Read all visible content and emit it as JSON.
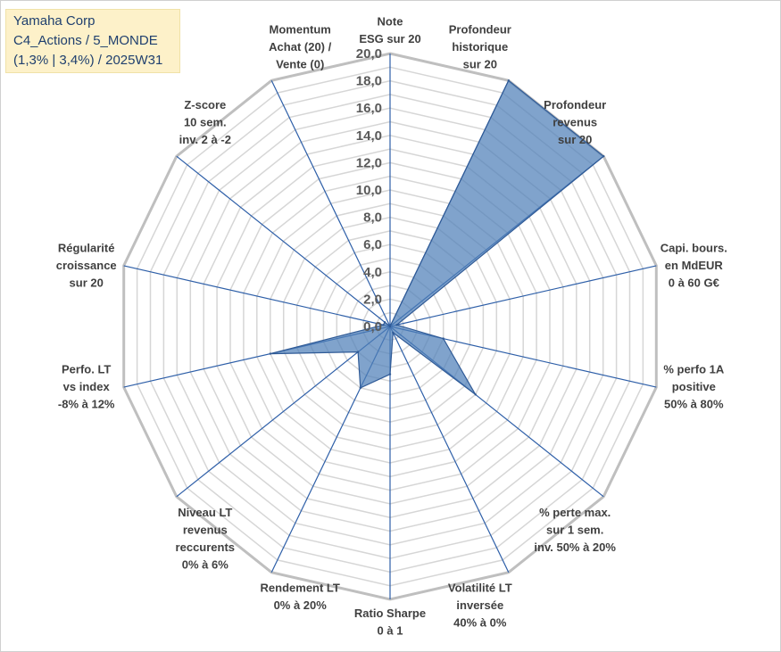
{
  "title_box": {
    "line1": "Yamaha Corp",
    "line2": "C4_Actions / 5_MONDE",
    "line3": "(1,3% | 3,4%) / 2025W31"
  },
  "colors": {
    "grid": "#c8c8c8",
    "spoke": "#2e5fa8",
    "fill": "#4f7fb8",
    "title_bg": "#fdf1c9"
  },
  "chart_data": {
    "type": "radar",
    "rmin": 0,
    "rmax": 20,
    "rings": 20,
    "tick_values": [
      0,
      2,
      4,
      6,
      8,
      10,
      12,
      14,
      16,
      18,
      20
    ],
    "tick_labels": [
      "0,0",
      "2,0",
      "4,0",
      "6,0",
      "8,0",
      "10,0",
      "12,0",
      "14,0",
      "16,0",
      "18,0",
      "20,0"
    ],
    "axes": [
      {
        "label": [
          "Note",
          "ESG sur 20"
        ]
      },
      {
        "label": [
          "Profondeur",
          "historique",
          "sur 20"
        ]
      },
      {
        "label": [
          "Profondeur",
          "revenus",
          "sur 20"
        ]
      },
      {
        "label": [
          "Capi. bours.",
          "en MdEUR",
          "0 à 60 G€"
        ]
      },
      {
        "label": [
          "% perfo 1A",
          "positive",
          "50% à 80%"
        ]
      },
      {
        "label": [
          "% perte max.",
          "sur 1 sem.",
          "inv. 50% à 20%"
        ]
      },
      {
        "label": [
          "Volatilité LT",
          "inversée",
          "40% à 0%"
        ]
      },
      {
        "label": [
          "Ratio Sharpe",
          "0 à 1"
        ]
      },
      {
        "label": [
          "Rendement LT",
          "0% à 20%"
        ]
      },
      {
        "label": [
          "Niveau LT",
          "revenus",
          "reccurents",
          "0% à 6%"
        ]
      },
      {
        "label": [
          "Perfo. LT",
          "vs index",
          "-8% à 12%"
        ]
      },
      {
        "label": [
          "Régularité",
          "croissance",
          "sur 20"
        ]
      },
      {
        "label": [
          "Z-score",
          "10 sem.",
          "inv. 2 à -2"
        ]
      },
      {
        "label": [
          "Momentum",
          "Achat (20) /",
          "Vente (0)"
        ]
      }
    ],
    "series": [
      {
        "values": [
          0,
          20,
          20,
          0.5,
          4,
          8,
          0.5,
          3.5,
          5,
          3,
          9,
          0.5,
          0.5,
          0
        ]
      }
    ]
  }
}
